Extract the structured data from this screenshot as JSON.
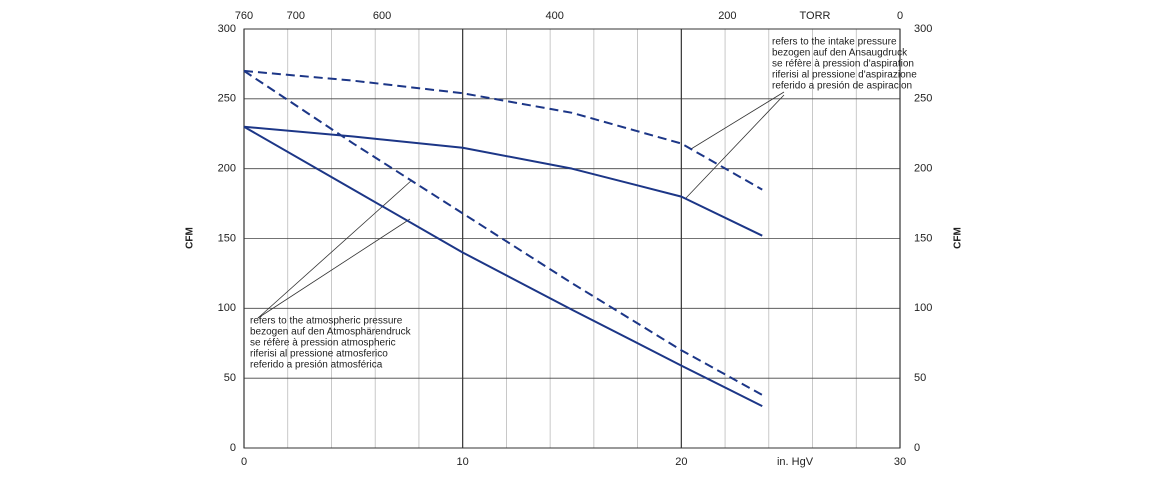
{
  "chart_data": {
    "type": "line",
    "y_label": "CFM",
    "y2_label": "CFM",
    "x_label": "in. HgV",
    "x2_label": "TORR",
    "xlim": [
      0,
      30
    ],
    "xticks": [
      0,
      10,
      20,
      30
    ],
    "x_minor_ticks": [
      2,
      4,
      6,
      8,
      12,
      14,
      16,
      18,
      22,
      24,
      26,
      28
    ],
    "x2lim": [
      760,
      0
    ],
    "x2ticks": [
      760,
      700,
      600,
      400,
      200,
      0
    ],
    "ylim": [
      0,
      300
    ],
    "yticks": [
      0,
      50,
      100,
      150,
      200,
      250,
      300
    ],
    "y2lim": [
      0,
      300
    ],
    "y2ticks": [
      0,
      50,
      100,
      150,
      200,
      250,
      300
    ],
    "grid": true,
    "series": [
      {
        "color": "#1c3687",
        "style": "solid",
        "x": [
          0,
          5,
          10,
          15,
          20,
          23.7
        ],
        "values": [
          230,
          185,
          140,
          99,
          59,
          30
        ]
      },
      {
        "color": "#1c3687",
        "style": "dashed",
        "x": [
          0,
          5,
          10,
          15,
          20,
          23.7
        ],
        "values": [
          270,
          218,
          168,
          118,
          70,
          38
        ]
      },
      {
        "color": "#1c3687",
        "style": "solid",
        "x": [
          0,
          5,
          10,
          15,
          20,
          23.7
        ],
        "values": [
          230,
          223,
          215,
          200,
          180,
          152
        ]
      },
      {
        "color": "#1c3687",
        "style": "dashed",
        "x": [
          0,
          5,
          10,
          15,
          20,
          23.7
        ],
        "values": [
          270,
          263,
          254,
          240,
          218,
          185
        ]
      }
    ],
    "annotations": [
      {
        "lines": [
          "refers to the intake pressure",
          "bezogen auf den Ansaugdruck",
          "se réfère à pression d'aspiration",
          "riferisi al pressione d'aspirazione",
          "referido a presión de aspiracion"
        ]
      },
      {
        "lines": [
          "refers to the atmospheric pressure",
          "bezogen auf den Atmosphärendruck",
          "se réfère à pression atmospheric",
          "riferisi al pressione atmosferico",
          "referido a presión atmosférica"
        ]
      }
    ]
  }
}
